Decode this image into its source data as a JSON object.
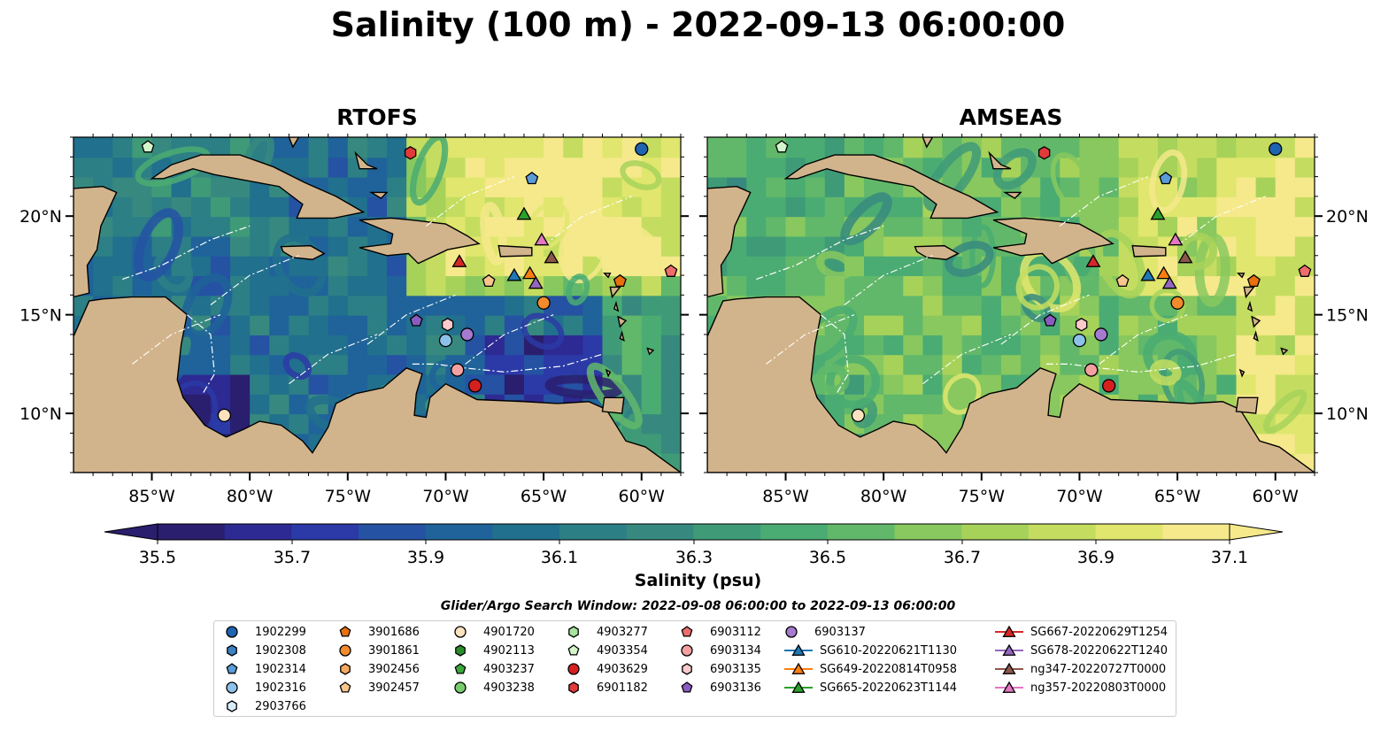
{
  "title": "Salinity (100 m) - 2022-09-13 06:00:00",
  "panels": [
    {
      "name": "RTOFS",
      "palette": "rtofs"
    },
    {
      "name": "AMSEAS",
      "palette": "amseas"
    }
  ],
  "map": {
    "lon_min": -89.0,
    "lon_max": -58.0,
    "lat_min": 7.0,
    "lat_max": 24.0,
    "lon_ticks": [
      "85°W",
      "80°W",
      "75°W",
      "70°W",
      "65°W",
      "60°W"
    ],
    "lat_ticks": [
      "20°N",
      "15°N",
      "10°N"
    ],
    "land_color": "#d2b48c",
    "water_color": "#95b3e0",
    "colormap": "summer-viridis"
  },
  "colorbar": {
    "label": "Salinity (psu)",
    "ticks": [
      "35.5",
      "35.7",
      "35.9",
      "36.1",
      "36.3",
      "36.5",
      "36.7",
      "36.9",
      "37.1"
    ],
    "colors": [
      "#2a1e6e",
      "#2d2a93",
      "#2b3aa6",
      "#2552a3",
      "#1f639a",
      "#21708d",
      "#2d7f86",
      "#37897f",
      "#3f9a78",
      "#4aac72",
      "#62b86a",
      "#88c85e",
      "#a7d25a",
      "#c4dd60",
      "#e0e66e",
      "#f5e98b"
    ],
    "extend": "both"
  },
  "search_window": "Glider/Argo Search Window: 2022-09-08 06:00:00 to 2022-09-13 06:00:00",
  "legend": {
    "columns": [
      [
        {
          "label": "1902299",
          "marker": "circle",
          "color": "#1f64b0"
        },
        {
          "label": "1902308",
          "marker": "hexagon",
          "color": "#3b81c4"
        },
        {
          "label": "1902314",
          "marker": "pentagon",
          "color": "#5a9bd8"
        },
        {
          "label": "1902316",
          "marker": "circle",
          "color": "#8cc2ea"
        },
        {
          "label": "2903766",
          "marker": "hexagon",
          "color": "#d8ecf8"
        }
      ],
      [
        {
          "label": "3901686",
          "marker": "pentagon",
          "color": "#e8700e"
        },
        {
          "label": "3901861",
          "marker": "circle",
          "color": "#f28b2c"
        },
        {
          "label": "3902456",
          "marker": "hexagon",
          "color": "#f6a860"
        },
        {
          "label": "3902457",
          "marker": "pentagon",
          "color": "#f9c58e"
        }
      ],
      [
        {
          "label": "4901720",
          "marker": "circle",
          "color": "#fde2c0"
        },
        {
          "label": "4902113",
          "marker": "hexagon",
          "color": "#2a8f2a"
        },
        {
          "label": "4903237",
          "marker": "pentagon",
          "color": "#3aa83a"
        },
        {
          "label": "4903238",
          "marker": "circle",
          "color": "#77cc6e"
        }
      ],
      [
        {
          "label": "4903277",
          "marker": "hexagon",
          "color": "#a6e59c"
        },
        {
          "label": "4903354",
          "marker": "pentagon",
          "color": "#d4f5cc"
        },
        {
          "label": "4903629",
          "marker": "circle",
          "color": "#d62020"
        },
        {
          "label": "6901182",
          "marker": "hexagon",
          "color": "#e03a3a"
        }
      ],
      [
        {
          "label": "6903112",
          "marker": "pentagon",
          "color": "#ee6c6c"
        },
        {
          "label": "6903134",
          "marker": "circle",
          "color": "#f5a0a0"
        },
        {
          "label": "6903135",
          "marker": "hexagon",
          "color": "#fbcaca"
        },
        {
          "label": "6903136",
          "marker": "pentagon",
          "color": "#8a5cc0"
        }
      ],
      [
        {
          "label": "6903137",
          "marker": "circle",
          "color": "#a57ad0"
        },
        {
          "label": "SG610-20220621T1130",
          "marker": "triangle-line",
          "color": "#1f77b4"
        },
        {
          "label": "SG649-20220814T0958",
          "marker": "triangle-line",
          "color": "#ff7f0e"
        },
        {
          "label": "SG665-20220623T1144",
          "marker": "triangle-line",
          "color": "#2ca02c"
        }
      ],
      [
        {
          "label": "SG667-20220629T1254",
          "marker": "triangle-line",
          "color": "#d62728"
        },
        {
          "label": "SG678-20220622T1240",
          "marker": "triangle-line",
          "color": "#9467bd"
        },
        {
          "label": "ng347-20220727T0000",
          "marker": "triangle-line",
          "color": "#8c564b"
        },
        {
          "label": "ng357-20220803T0000",
          "marker": "triangle-line",
          "color": "#e377c2"
        }
      ]
    ]
  },
  "observations": [
    {
      "id": "1902299",
      "lon": -60.0,
      "lat": 23.4,
      "marker": "circle",
      "color": "#1f64b0"
    },
    {
      "id": "1902314",
      "lon": -65.6,
      "lat": 21.9,
      "marker": "pentagon",
      "color": "#5a9bd8"
    },
    {
      "id": "1902316",
      "lon": -70.0,
      "lat": 13.7,
      "marker": "circle",
      "color": "#8cc2ea"
    },
    {
      "id": "3901686",
      "lon": -61.1,
      "lat": 16.7,
      "marker": "pentagon",
      "color": "#e8700e"
    },
    {
      "id": "3901861",
      "lon": -65.0,
      "lat": 15.6,
      "marker": "circle",
      "color": "#f28b2c"
    },
    {
      "id": "3902457",
      "lon": -67.8,
      "lat": 16.7,
      "marker": "pentagon",
      "color": "#f9c58e"
    },
    {
      "id": "4901720",
      "lon": -81.3,
      "lat": 9.9,
      "marker": "circle",
      "color": "#fde2c0"
    },
    {
      "id": "4903354",
      "lon": -85.2,
      "lat": 23.5,
      "marker": "pentagon",
      "color": "#d4f5cc"
    },
    {
      "id": "4903629",
      "lon": -68.5,
      "lat": 11.4,
      "marker": "circle",
      "color": "#d62020"
    },
    {
      "id": "6901182",
      "lon": -71.8,
      "lat": 23.2,
      "marker": "hexagon",
      "color": "#e03a3a"
    },
    {
      "id": "6903112",
      "lon": -58.5,
      "lat": 17.2,
      "marker": "pentagon",
      "color": "#ee6c6c"
    },
    {
      "id": "6903134",
      "lon": -69.4,
      "lat": 12.2,
      "marker": "circle",
      "color": "#f5a0a0"
    },
    {
      "id": "6903135",
      "lon": -69.9,
      "lat": 14.5,
      "marker": "hexagon",
      "color": "#fbcaca"
    },
    {
      "id": "6903136",
      "lon": -71.5,
      "lat": 14.7,
      "marker": "pentagon",
      "color": "#8a5cc0"
    },
    {
      "id": "6903137",
      "lon": -68.9,
      "lat": 14.0,
      "marker": "circle",
      "color": "#a57ad0"
    },
    {
      "id": "SG610-20220621T1130",
      "lon": -66.5,
      "lat": 17.0,
      "marker": "triangle",
      "color": "#1f77b4"
    },
    {
      "id": "SG649-20220814T0958",
      "lon": -65.7,
      "lat": 17.1,
      "marker": "triangle",
      "color": "#ff7f0e"
    },
    {
      "id": "SG665-20220623T1144",
      "lon": -66.0,
      "lat": 20.1,
      "marker": "triangle",
      "color": "#2ca02c"
    },
    {
      "id": "SG667-20220629T1254",
      "lon": -69.3,
      "lat": 17.7,
      "marker": "triangle",
      "color": "#d62728"
    },
    {
      "id": "SG678-20220622T1240",
      "lon": -65.4,
      "lat": 16.6,
      "marker": "triangle",
      "color": "#9467bd"
    },
    {
      "id": "ng347-20220727T0000",
      "lon": -64.6,
      "lat": 17.9,
      "marker": "triangle",
      "color": "#8c564b"
    },
    {
      "id": "ng357-20220803T0000",
      "lon": -65.1,
      "lat": 18.8,
      "marker": "triangle",
      "color": "#e377c2"
    }
  ]
}
